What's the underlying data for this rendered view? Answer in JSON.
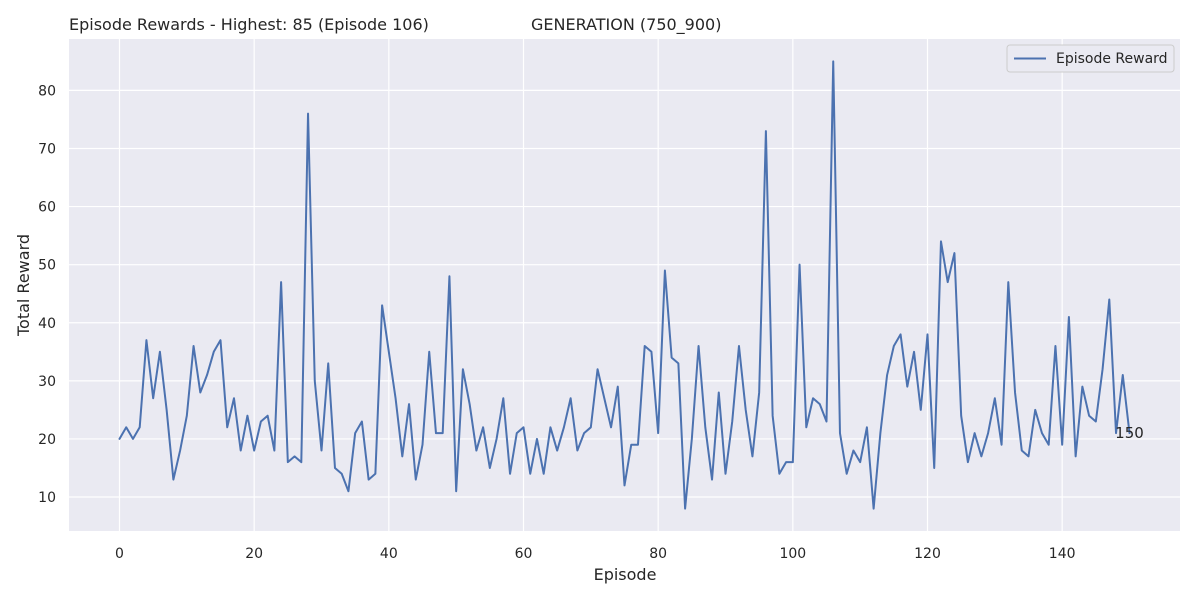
{
  "chart_data": {
    "type": "line",
    "title": "Episode Rewards - Highest: 85 (Episode 106)",
    "subtitle": "GENERATION (750_900)",
    "xlabel": "Episode",
    "ylabel": "Total Reward",
    "xlim": [
      -7.5,
      157.5
    ],
    "ylim": [
      4.15,
      88.85
    ],
    "xticks": [
      0,
      20,
      40,
      60,
      80,
      100,
      120,
      140
    ],
    "yticks": [
      10,
      20,
      30,
      40,
      50,
      60,
      70,
      80
    ],
    "grid": true,
    "legend_position": "top-right",
    "series": [
      {
        "name": "Episode Reward",
        "color": "#4c72b0",
        "x": [
          0,
          1,
          2,
          3,
          4,
          5,
          6,
          7,
          8,
          9,
          10,
          11,
          12,
          13,
          14,
          15,
          16,
          17,
          18,
          19,
          20,
          21,
          22,
          23,
          24,
          25,
          26,
          27,
          28,
          29,
          30,
          31,
          32,
          33,
          34,
          35,
          36,
          37,
          38,
          39,
          40,
          41,
          42,
          43,
          44,
          45,
          46,
          47,
          48,
          49,
          50,
          51,
          52,
          53,
          54,
          55,
          56,
          57,
          58,
          59,
          60,
          61,
          62,
          63,
          64,
          65,
          66,
          67,
          68,
          69,
          70,
          71,
          72,
          73,
          74,
          75,
          76,
          77,
          78,
          79,
          80,
          81,
          82,
          83,
          84,
          85,
          86,
          87,
          88,
          89,
          90,
          91,
          92,
          93,
          94,
          95,
          96,
          97,
          98,
          99,
          100,
          101,
          102,
          103,
          104,
          105,
          106,
          107,
          108,
          109,
          110,
          111,
          112,
          113,
          114,
          115,
          116,
          117,
          118,
          119,
          120,
          121,
          122,
          123,
          124,
          125,
          126,
          127,
          128,
          129,
          130,
          131,
          132,
          133,
          134,
          135,
          136,
          137,
          138,
          139,
          140,
          141,
          142,
          143,
          144,
          145,
          146,
          147,
          148,
          149,
          150
        ],
        "values": [
          20,
          22,
          20,
          22,
          37,
          27,
          35,
          25,
          13,
          18,
          24,
          36,
          28,
          31,
          35,
          37,
          22,
          27,
          18,
          24,
          18,
          23,
          24,
          18,
          47,
          16,
          17,
          16,
          76,
          30,
          18,
          33,
          15,
          14,
          11,
          21,
          23,
          13,
          14,
          43,
          35,
          27,
          17,
          26,
          13,
          19,
          35,
          21,
          21,
          48,
          11,
          32,
          26,
          18,
          22,
          15,
          20,
          27,
          14,
          21,
          22,
          14,
          20,
          14,
          22,
          18,
          22,
          27,
          18,
          21,
          22,
          32,
          27,
          22,
          29,
          12,
          19,
          19,
          36,
          35,
          21,
          49,
          34,
          33,
          8,
          20,
          36,
          22,
          13,
          28,
          14,
          23,
          36,
          25,
          17,
          28,
          73,
          24,
          14,
          16,
          16,
          50,
          22,
          27,
          26,
          23,
          85,
          21,
          14,
          18,
          16,
          22,
          8,
          21,
          31,
          36,
          38,
          29,
          35,
          25,
          38,
          15,
          54,
          47,
          52,
          24,
          16,
          21,
          17,
          21,
          27,
          19,
          47,
          28,
          18,
          17,
          25,
          21,
          19,
          36,
          19,
          41,
          17,
          29,
          24,
          23,
          32,
          44,
          21,
          31,
          21
        ]
      }
    ],
    "annotations": [
      {
        "text": "150",
        "x": 150,
        "y": 21
      }
    ],
    "colors": {
      "plot_background": "#eaeaf2",
      "grid": "#ffffff",
      "line": "#4c72b0"
    }
  }
}
